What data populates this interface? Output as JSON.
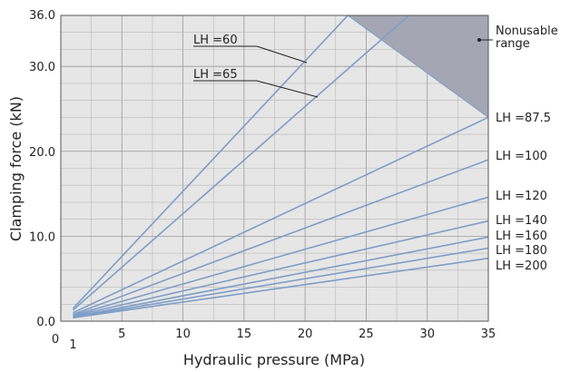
{
  "chart_data": {
    "type": "line",
    "title": "",
    "xlabel": "Hydraulic pressure (MPa)",
    "ylabel": "Clamping force (kN)",
    "xlim": [
      0,
      35
    ],
    "ylim": [
      0,
      36
    ],
    "x_ticks": [
      {
        "value": 0,
        "label": "0"
      },
      {
        "value": 1,
        "label": "1"
      },
      {
        "value": 5,
        "label": "5"
      },
      {
        "value": 10,
        "label": "10"
      },
      {
        "value": 15,
        "label": "15"
      },
      {
        "value": 20,
        "label": "20"
      },
      {
        "value": 25,
        "label": "25"
      },
      {
        "value": 30,
        "label": "30"
      },
      {
        "value": 35,
        "label": "35"
      }
    ],
    "y_ticks": [
      {
        "value": 0,
        "label": "0.0"
      },
      {
        "value": 10,
        "label": "10.0"
      },
      {
        "value": 20,
        "label": "20.0"
      },
      {
        "value": 30,
        "label": "30.0"
      },
      {
        "value": 36,
        "label": "36.0"
      }
    ],
    "grid": true,
    "line_color": "#7f9dc8",
    "plot_background": "#e6e6e6",
    "series": [
      {
        "name": "LH =60",
        "x": [
          1,
          23.5
        ],
        "y": [
          1.5,
          36
        ]
      },
      {
        "name": "LH =65",
        "x": [
          1,
          28.5
        ],
        "y": [
          1.3,
          36
        ]
      },
      {
        "name": "LH =87.5",
        "x": [
          1,
          35
        ],
        "y": [
          1.0,
          24
        ]
      },
      {
        "name": "LH =100",
        "x": [
          1,
          35
        ],
        "y": [
          0.8,
          19
        ]
      },
      {
        "name": "LH =120",
        "x": [
          1,
          35
        ],
        "y": [
          0.7,
          14.6
        ]
      },
      {
        "name": "LH =140",
        "x": [
          1,
          35
        ],
        "y": [
          0.6,
          11.8
        ]
      },
      {
        "name": "LH =160",
        "x": [
          1,
          35
        ],
        "y": [
          0.5,
          9.9
        ]
      },
      {
        "name": "LH =180",
        "x": [
          1,
          35
        ],
        "y": [
          0.45,
          8.6
        ]
      },
      {
        "name": "LH =200",
        "x": [
          1,
          35
        ],
        "y": [
          0.4,
          7.4
        ]
      }
    ],
    "nonusable_region": {
      "label": "Nonusable range",
      "label_lines": [
        "Nonusable",
        "range"
      ],
      "boundary_x": [
        23.5,
        35
      ],
      "boundary_y": [
        36,
        24
      ],
      "fill": "#a4a7b3"
    }
  }
}
